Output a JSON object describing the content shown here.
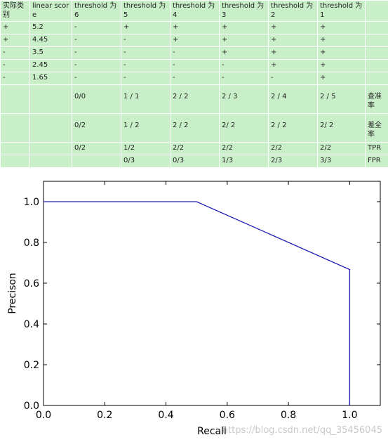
{
  "table": {
    "rows": [
      [
        "实际类别",
        "linear score",
        "threshold 为6",
        "threshold 为5",
        "threshold 为4",
        "threshold 为3",
        "threshold 为2",
        "threshold 为1",
        ""
      ],
      [
        "+",
        "5.2",
        "-",
        "+",
        "+",
        "+",
        "+",
        "+",
        ""
      ],
      [
        "+",
        "4.45",
        "-",
        "-",
        "+",
        "+",
        "+",
        "+",
        ""
      ],
      [
        "-",
        "3.5",
        "-",
        "-",
        "-",
        "+",
        "+",
        "+",
        ""
      ],
      [
        "-",
        "2.45",
        "-",
        "-",
        "-",
        "-",
        "+",
        "+",
        ""
      ],
      [
        "-",
        "1.65",
        "-",
        "-",
        "-",
        "-",
        "-",
        "+",
        ""
      ],
      [
        "",
        "",
        "0/0",
        "1 / 1",
        "2 / 2",
        "2 / 3",
        "2 / 4",
        "2 / 5",
        "查准率"
      ],
      [
        "",
        "",
        "0/2",
        "1 / 2",
        "2 / 2",
        "2/ 2",
        "2 / 2",
        "2/ 2",
        "差全率"
      ],
      [
        "",
        "",
        "0/2",
        "1/2",
        "2/2",
        "2/2",
        "2/2",
        "2/2",
        "TPR"
      ],
      [
        "",
        "",
        "",
        "0/3",
        "0/3",
        "1/3",
        "2/3",
        "3/3",
        "FPR"
      ]
    ]
  },
  "chart_data": {
    "type": "line",
    "title": "",
    "xlabel": "Recall",
    "ylabel": "Precison",
    "xlim": [
      0.0,
      1.1
    ],
    "ylim": [
      0.0,
      1.1
    ],
    "xticks": [
      "0.0",
      "0.2",
      "0.4",
      "0.6",
      "0.8",
      "1.0"
    ],
    "yticks": [
      "0.0",
      "0.2",
      "0.4",
      "0.6",
      "0.8",
      "1.0"
    ],
    "grid": false,
    "series": [
      {
        "color": "#1f1fb4",
        "x": [
          0.0,
          0.5,
          1.0,
          1.0
        ],
        "y": [
          1.0,
          1.0,
          0.667,
          0.0
        ]
      }
    ]
  },
  "watermark": "https://blog.csdn.net/qq_35456045"
}
